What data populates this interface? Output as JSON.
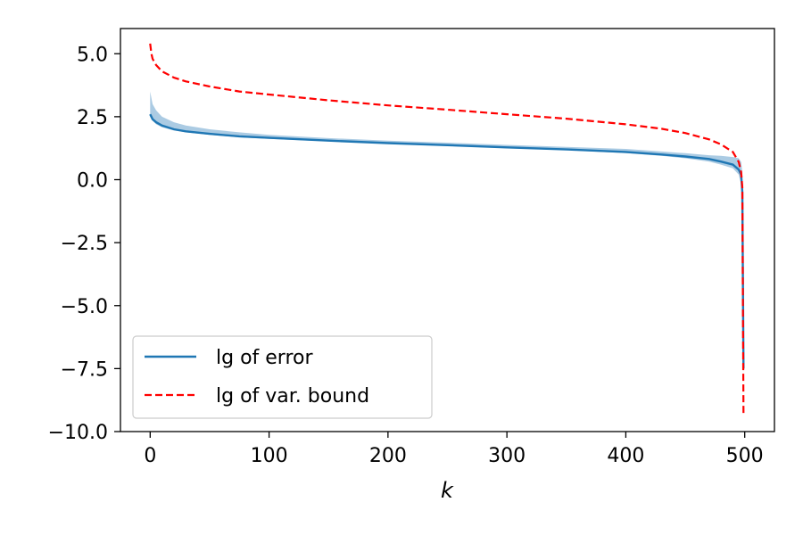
{
  "chart_data": {
    "type": "line",
    "title": "",
    "xlabel": "k",
    "ylabel": "",
    "xlim": [
      -25,
      525
    ],
    "ylim": [
      -10.0,
      6.0
    ],
    "xticks": [
      0,
      100,
      200,
      300,
      400,
      500
    ],
    "xtick_labels": [
      "0",
      "100",
      "200",
      "300",
      "400",
      "500"
    ],
    "yticks": [
      5.0,
      2.5,
      0.0,
      -2.5,
      -5.0,
      -7.5,
      -10.0
    ],
    "ytick_labels": [
      "5.0",
      "2.5",
      "0.0",
      "−2.5",
      "−5.0",
      "−7.5",
      "−10.0"
    ],
    "grid": false,
    "legend_position": "lower-left",
    "legend_entries": [
      "lg of error",
      "lg of var. bound"
    ],
    "colors": {
      "error": "#1f77b4",
      "band": "#a6c8e2",
      "bound": "#ff0000"
    },
    "series": [
      {
        "name": "lg of error",
        "style": "solid",
        "x": [
          0,
          2,
          5,
          10,
          20,
          30,
          50,
          75,
          100,
          150,
          200,
          250,
          300,
          350,
          400,
          430,
          450,
          470,
          480,
          490,
          495,
          497,
          498,
          499
        ],
        "y": [
          2.6,
          2.4,
          2.28,
          2.15,
          2.0,
          1.92,
          1.82,
          1.72,
          1.66,
          1.55,
          1.45,
          1.37,
          1.28,
          1.2,
          1.1,
          1.0,
          0.92,
          0.82,
          0.72,
          0.6,
          0.4,
          0.2,
          -0.5,
          -7.5
        ],
        "band_upper": [
          3.5,
          3.0,
          2.75,
          2.5,
          2.28,
          2.15,
          2.0,
          1.88,
          1.78,
          1.65,
          1.55,
          1.47,
          1.38,
          1.3,
          1.22,
          1.12,
          1.05,
          0.97,
          0.95,
          0.9,
          0.85,
          0.7,
          0.3,
          -7.0
        ],
        "band_lower": [
          2.5,
          2.35,
          2.2,
          2.08,
          1.95,
          1.88,
          1.78,
          1.68,
          1.62,
          1.52,
          1.42,
          1.34,
          1.25,
          1.17,
          1.05,
          0.95,
          0.85,
          0.72,
          0.6,
          0.45,
          0.2,
          -0.2,
          -1.5,
          -8.0
        ]
      },
      {
        "name": "lg of var. bound",
        "style": "dashed",
        "x": [
          0,
          1,
          2,
          5,
          10,
          20,
          30,
          50,
          75,
          100,
          150,
          200,
          250,
          300,
          350,
          400,
          430,
          450,
          470,
          480,
          490,
          495,
          497,
          498,
          499
        ],
        "y": [
          5.4,
          5.0,
          4.8,
          4.55,
          4.3,
          4.05,
          3.9,
          3.7,
          3.5,
          3.38,
          3.15,
          2.95,
          2.78,
          2.6,
          2.42,
          2.2,
          2.02,
          1.85,
          1.6,
          1.4,
          1.1,
          0.7,
          0.3,
          -0.3,
          -9.3
        ]
      }
    ]
  }
}
